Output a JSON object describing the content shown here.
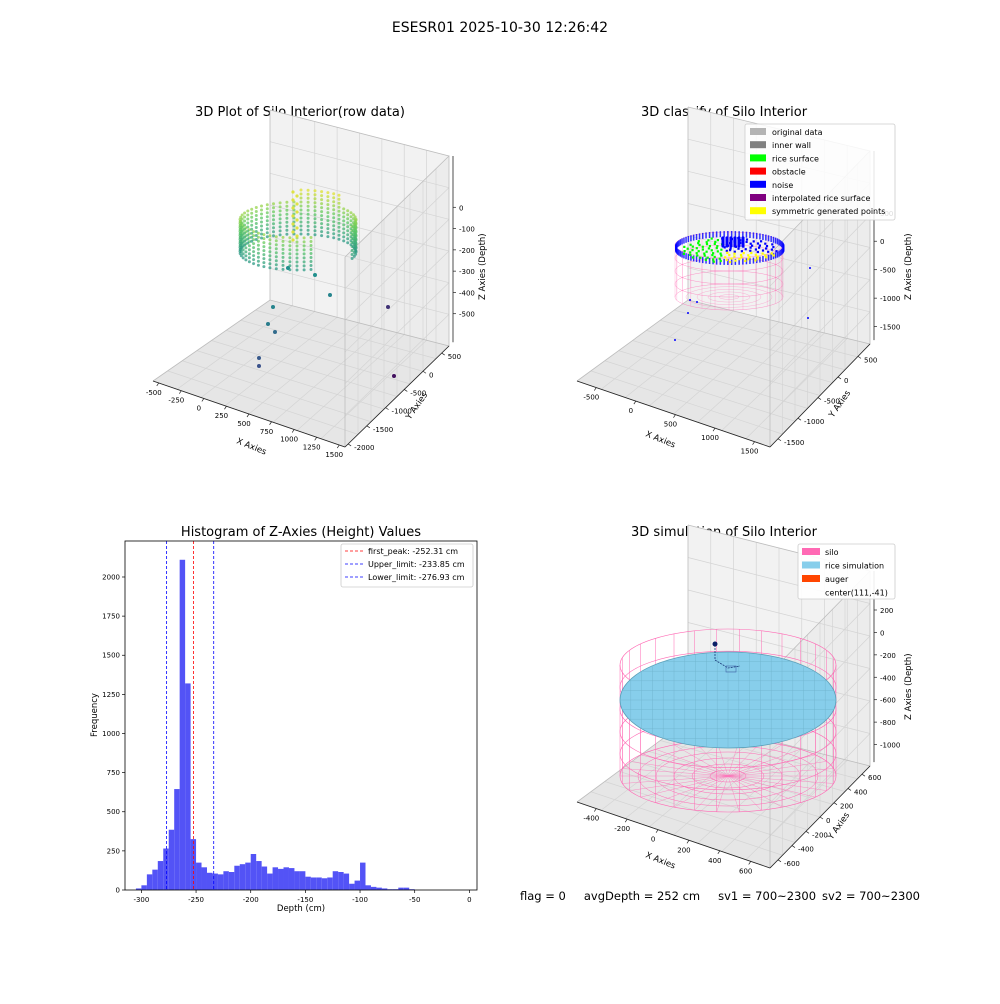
{
  "figure": {
    "suptitle": "ESESR01 2025-10-30 12:26:42"
  },
  "chart_data": [
    {
      "type": "scatter",
      "title": "3D Plot of Silo Interior(row data)",
      "xlabel": "X Axies",
      "ylabel": "Y Axies",
      "zlabel": "Z Axies (Depth)",
      "x_ticks": [
        "-500",
        "-250",
        "0",
        "250",
        "500",
        "750",
        "1000",
        "1250",
        "1500"
      ],
      "y_ticks": [
        "500",
        "0",
        "-500",
        "-1000",
        "-1500",
        "-2000"
      ],
      "z_ticks": [
        "0",
        "-100",
        "-200",
        "-300",
        "-400",
        "-500"
      ],
      "colormap": [
        "#440154",
        "#3b528b",
        "#21908d",
        "#5dc962",
        "#fde725"
      ]
    },
    {
      "type": "scatter",
      "title": "3D classify of Silo Interior",
      "xlabel": "X Axies",
      "ylabel": "Y Axies",
      "zlabel": "Z Axies (Depth)",
      "x_ticks": [
        "-500",
        "0",
        "500",
        "1000",
        "1500"
      ],
      "y_ticks": [
        "500",
        "0",
        "-500",
        "-1000",
        "-1500"
      ],
      "z_ticks": [
        "500",
        "0",
        "-500",
        "-1000",
        "-1500"
      ],
      "legend": [
        {
          "label": "original data",
          "color": "#b4b4b4"
        },
        {
          "label": "inner wall",
          "color": "#808080"
        },
        {
          "label": "rice surface",
          "color": "#00ff00"
        },
        {
          "label": "obstacle",
          "color": "#ff0000"
        },
        {
          "label": "noise",
          "color": "#0000ff"
        },
        {
          "label": "interpolated rice surface",
          "color": "#800080"
        },
        {
          "label": "symmetric generated points",
          "color": "#ffff00"
        }
      ]
    },
    {
      "type": "bar",
      "title": "Histogram of Z-Axies (Height) Values",
      "xlabel": "Depth (cm)",
      "ylabel": "Frequency",
      "xlim": [
        -315,
        7
      ],
      "ylim": [
        0,
        2230
      ],
      "x_ticks": [
        -300,
        -250,
        -200,
        -150,
        -100,
        -50,
        0
      ],
      "y_ticks": [
        0,
        250,
        500,
        750,
        1000,
        1250,
        1500,
        1750,
        2000
      ],
      "bin_width": 5,
      "bin_starts": [
        -305,
        -300,
        -295,
        -290,
        -285,
        -280,
        -275,
        -270,
        -265,
        -260,
        -255,
        -250,
        -245,
        -240,
        -235,
        -230,
        -225,
        -220,
        -215,
        -210,
        -205,
        -200,
        -195,
        -190,
        -185,
        -180,
        -175,
        -170,
        -165,
        -160,
        -155,
        -150,
        -145,
        -140,
        -135,
        -130,
        -125,
        -120,
        -115,
        -110,
        -105,
        -100,
        -95,
        -90,
        -85,
        -80,
        -75,
        -70,
        -65,
        -60,
        -55,
        -50,
        -45,
        -40,
        -35,
        -30,
        -25,
        -20,
        -15,
        -10,
        -5
      ],
      "values": [
        10,
        30,
        100,
        130,
        185,
        265,
        385,
        645,
        2110,
        1320,
        325,
        175,
        145,
        110,
        105,
        100,
        120,
        115,
        155,
        165,
        175,
        230,
        185,
        150,
        105,
        145,
        135,
        145,
        140,
        120,
        120,
        85,
        80,
        80,
        75,
        80,
        120,
        115,
        105,
        40,
        60,
        175,
        30,
        20,
        15,
        10,
        5,
        5,
        15,
        15,
        5,
        0,
        0,
        0,
        0,
        0,
        0,
        0,
        0,
        0,
        0
      ],
      "bar_color": "#4a4af5",
      "vlines": [
        {
          "x": -252.31,
          "label": "first_peak: -252.31 cm",
          "color": "#ff0000"
        },
        {
          "x": -233.85,
          "label": "Upper_limit: -233.85 cm",
          "color": "#0000ff"
        },
        {
          "x": -276.93,
          "label": "Lower_limit: -276.93 cm",
          "color": "#0000ff"
        }
      ]
    },
    {
      "type": "scatter",
      "title": "3D simulation of Silo Interior",
      "xlabel": "X Axies",
      "ylabel": "Y Axies",
      "zlabel": "Z Axies (Depth)",
      "x_ticks": [
        "-400",
        "-200",
        "0",
        "200",
        "400",
        "600"
      ],
      "y_ticks": [
        "600",
        "400",
        "200",
        "0",
        "-200",
        "-400",
        "-600"
      ],
      "z_ticks": [
        "200",
        "0",
        "-200",
        "-400",
        "-600",
        "-800",
        "-1000"
      ],
      "legend": [
        {
          "label": "silo",
          "color": "#ff69b4"
        },
        {
          "label": "rice simulation",
          "color": "#87ceeb"
        },
        {
          "label": "auger",
          "color": "#ff4500"
        },
        {
          "label": "center(111,-41)",
          "color": ""
        }
      ]
    }
  ],
  "footer": {
    "flag": "flag = 0",
    "avg_depth": "avgDepth = 252 cm",
    "sv1": "sv1 = 700~2300",
    "sv2": "sv2 = 700~2300"
  }
}
